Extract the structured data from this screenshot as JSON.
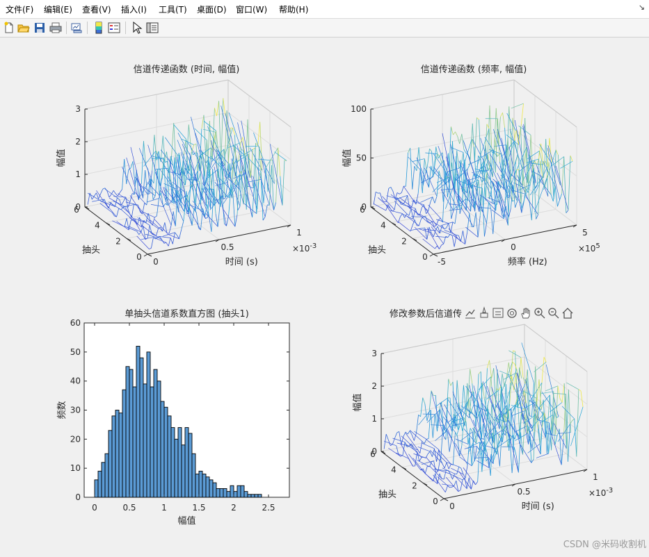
{
  "menu": [
    "文件(F)",
    "编辑(E)",
    "查看(V)",
    "插入(I)",
    "工具(T)",
    "桌面(D)",
    "窗口(W)",
    "帮助(H)"
  ],
  "menu_corner": "↘",
  "toolbar_icons": [
    "new-figure-icon",
    "open-file-icon",
    "save-icon",
    "print-icon",
    "link-plot-icon",
    "colorbar-icon",
    "legend-icon",
    "select-pointer-icon",
    "property-inspector-icon"
  ],
  "axes_toolbar_icons": [
    "export-icon",
    "brush-icon",
    "data-tips-icon",
    "rotate-3d-icon",
    "pan-hand-icon",
    "zoom-in-icon",
    "zoom-out-icon",
    "home-icon"
  ],
  "watermark": "CSDN @米码收割机",
  "colors": {
    "surface_low": "#3a44d6",
    "surface_mid": "#23a6d9",
    "surface_high": "#f0e94a",
    "bar_fill": "#5b9bd5",
    "bar_edge": "#000000"
  },
  "chart_data": [
    {
      "type": "surface-3d",
      "title": "信道传递函数 (时间, 幅值)",
      "xlabel": "时间 (s)",
      "ylabel": "抽头",
      "zlabel": "幅值",
      "x_ticks": [
        "0",
        "0.5",
        "1"
      ],
      "x_exponent_base": "×10",
      "x_exponent_power": "-3",
      "y_ticks": [
        "0",
        "2",
        "4",
        "6"
      ],
      "z_ticks": [
        "0",
        "1",
        "2",
        "3"
      ],
      "xlim": [
        0,
        0.001
      ],
      "ylim": [
        0,
        6
      ],
      "zlim": [
        0,
        3
      ],
      "grid": true
    },
    {
      "type": "surface-3d",
      "title": "信道传递函数 (频率, 幅值)",
      "xlabel": "频率 (Hz)",
      "ylabel": "抽头",
      "zlabel": "幅值",
      "x_ticks": [
        "-5",
        "0",
        "5"
      ],
      "x_exponent_base": "×10",
      "x_exponent_power": "5",
      "y_ticks": [
        "0",
        "2",
        "4",
        "6"
      ],
      "z_ticks": [
        "0",
        "50",
        "100"
      ],
      "xlim": [
        -500000,
        500000
      ],
      "ylim": [
        0,
        6
      ],
      "zlim": [
        0,
        100
      ],
      "grid": true
    },
    {
      "type": "bar",
      "title": "单抽头信道系数直方图 (抽头1)",
      "xlabel": "幅值",
      "ylabel": "频数",
      "x_ticks": [
        "0",
        "0.5",
        "1",
        "1.5",
        "2",
        "2.5"
      ],
      "y_ticks": [
        "0",
        "10",
        "20",
        "30",
        "40",
        "50",
        "60"
      ],
      "xlim": [
        -0.15,
        2.8
      ],
      "ylim": [
        0,
        60
      ],
      "bin_width": 0.05,
      "bin_start": 0,
      "values": [
        6,
        9,
        12,
        15,
        23,
        28,
        30,
        29,
        37,
        45,
        44,
        38,
        52,
        48,
        39,
        50,
        38,
        44,
        40,
        33,
        31,
        28,
        24,
        20,
        24,
        18,
        24,
        22,
        15,
        8,
        9,
        8,
        7,
        6,
        5,
        3,
        3,
        3,
        2,
        4,
        2,
        4,
        4,
        2,
        1,
        1,
        1,
        1
      ],
      "grid": false
    },
    {
      "type": "surface-3d",
      "title": "修改参数后信道传",
      "xlabel": "时间 (s)",
      "ylabel": "抽头",
      "zlabel": "幅值",
      "x_ticks": [
        "0",
        "0.5",
        "1"
      ],
      "x_exponent_base": "×10",
      "x_exponent_power": "-3",
      "y_ticks": [
        "0",
        "2",
        "4",
        "6"
      ],
      "z_ticks": [
        "0",
        "1",
        "2",
        "3"
      ],
      "xlim": [
        0,
        0.001
      ],
      "ylim": [
        0,
        6
      ],
      "zlim": [
        0,
        3
      ],
      "grid": true
    }
  ]
}
